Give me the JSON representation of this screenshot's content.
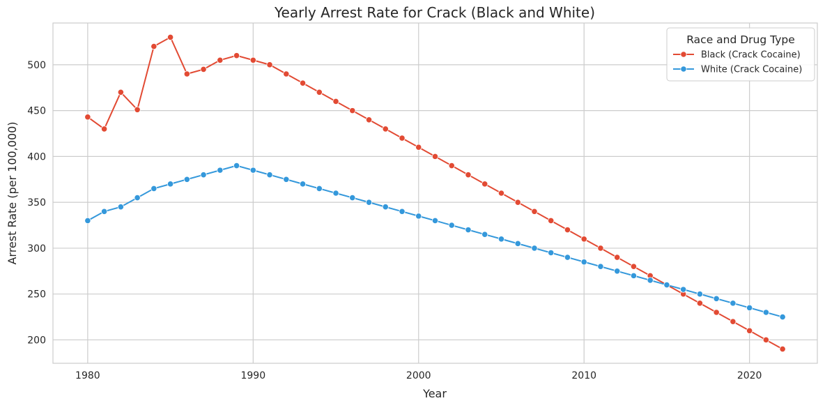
{
  "chart_data": {
    "type": "line",
    "title": "Yearly Arrest Rate for Crack (Black and White)",
    "xlabel": "Year",
    "ylabel": "Arrest Rate (per 100,000)",
    "xlim": [
      1977.9,
      2024.1
    ],
    "ylim": [
      174.5,
      545.5
    ],
    "x_ticks": [
      1980,
      1990,
      2000,
      2010,
      2020
    ],
    "y_ticks": [
      200,
      250,
      300,
      350,
      400,
      450,
      500
    ],
    "grid": true,
    "legend": {
      "title": "Race and Drug Type",
      "position": "top-right"
    },
    "x": [
      1980,
      1981,
      1982,
      1983,
      1984,
      1985,
      1986,
      1987,
      1988,
      1989,
      1990,
      1991,
      1992,
      1993,
      1994,
      1995,
      1996,
      1997,
      1998,
      1999,
      2000,
      2001,
      2002,
      2003,
      2004,
      2005,
      2006,
      2007,
      2008,
      2009,
      2010,
      2011,
      2012,
      2013,
      2014,
      2015,
      2016,
      2017,
      2018,
      2019,
      2020,
      2021,
      2022
    ],
    "series": [
      {
        "name": "Black (Crack Cocaine)",
        "color": "#e24a33",
        "values": [
          443,
          430,
          470,
          451,
          520,
          530,
          490,
          495,
          505,
          510,
          505,
          500,
          490,
          480,
          470,
          460,
          450,
          440,
          430,
          420,
          410,
          400,
          390,
          380,
          370,
          360,
          350,
          340,
          330,
          320,
          310,
          300,
          290,
          280,
          270,
          260,
          250,
          240,
          230,
          220,
          210,
          200,
          190
        ]
      },
      {
        "name": "White (Crack Cocaine)",
        "color": "#3498db",
        "values": [
          330,
          340,
          345,
          355,
          365,
          370,
          375,
          380,
          385,
          390,
          385,
          380,
          375,
          370,
          365,
          360,
          355,
          350,
          345,
          340,
          335,
          330,
          325,
          320,
          315,
          310,
          305,
          300,
          295,
          290,
          285,
          280,
          275,
          270,
          265,
          260,
          255,
          250,
          245,
          240,
          235,
          230,
          225
        ]
      }
    ]
  }
}
